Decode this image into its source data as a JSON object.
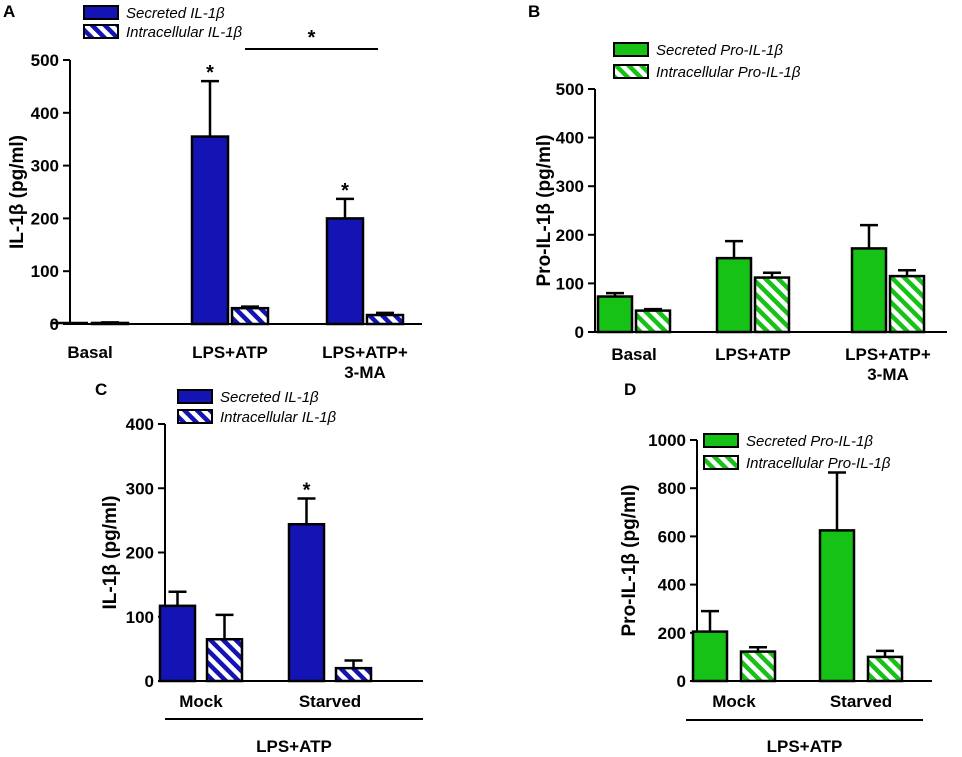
{
  "colors": {
    "blue": "#1414b4",
    "green": "#16c216"
  },
  "chart_data": [
    {
      "panel": "A",
      "type": "bar",
      "ylabel": "IL-1β (pg/ml)",
      "ylim": [
        0,
        500
      ],
      "yticks": [
        "0",
        "100",
        "200",
        "300",
        "400",
        "500"
      ],
      "categories": [
        [
          "Basal"
        ],
        [
          "LPS+ATP"
        ],
        [
          "LPS+ATP+",
          "3-MA"
        ]
      ],
      "series": [
        {
          "name": "Secreted IL-1β",
          "pattern": "solid",
          "color": "blue",
          "values": [
            0,
            355,
            200
          ],
          "errors": [
            0,
            105,
            37
          ]
        },
        {
          "name": "Intracellular IL-1β",
          "pattern": "hatched",
          "color": "blue",
          "values": [
            2,
            30,
            17
          ],
          "errors": [
            1,
            3,
            4
          ]
        }
      ],
      "annotations": [
        {
          "text": "*",
          "category": 1,
          "series": 0
        },
        {
          "text": "*",
          "category": 2,
          "series": 0
        },
        {
          "text": "*",
          "type": "bracket",
          "from_category": 1,
          "to_category": 2,
          "level": 520
        }
      ],
      "legend": "top-left"
    },
    {
      "panel": "B",
      "type": "bar",
      "ylabel": "Pro-IL-1β (pg/ml)",
      "ylim": [
        0,
        500
      ],
      "yticks": [
        "0",
        "100",
        "200",
        "300",
        "400",
        "500"
      ],
      "categories": [
        [
          "Basal"
        ],
        [
          "LPS+ATP"
        ],
        [
          "LPS+ATP+",
          "3-MA"
        ]
      ],
      "series": [
        {
          "name": "Secreted Pro-IL-1β",
          "pattern": "solid",
          "color": "green",
          "values": [
            73,
            152,
            172
          ],
          "errors": [
            7,
            35,
            48
          ]
        },
        {
          "name": "Intracellular Pro-IL-1β",
          "pattern": "hatched",
          "color": "green",
          "values": [
            44,
            112,
            115
          ],
          "errors": [
            3,
            10,
            12
          ]
        }
      ],
      "annotations": [],
      "legend": "top-left"
    },
    {
      "panel": "C",
      "type": "bar",
      "ylabel": "IL-1β (pg/ml)",
      "ylim": [
        0,
        400
      ],
      "yticks": [
        "0",
        "100",
        "200",
        "300",
        "400"
      ],
      "categories": [
        [
          "Mock"
        ],
        [
          "Starved"
        ]
      ],
      "group_label": "LPS+ATP",
      "series": [
        {
          "name": "Secreted IL-1β",
          "pattern": "solid",
          "color": "blue",
          "values": [
            117,
            244
          ],
          "errors": [
            22,
            40
          ]
        },
        {
          "name": "Intracellular IL-1β",
          "pattern": "hatched",
          "color": "blue",
          "values": [
            65,
            20
          ],
          "errors": [
            38,
            12
          ]
        }
      ],
      "annotations": [
        {
          "text": "*",
          "category": 1,
          "series": 0
        }
      ],
      "legend": "top-right"
    },
    {
      "panel": "D",
      "type": "bar",
      "ylabel": "Pro-IL-1β (pg/ml)",
      "ylim": [
        0,
        1000
      ],
      "yticks": [
        "0",
        "200",
        "400",
        "600",
        "800",
        "1000"
      ],
      "categories": [
        [
          "Mock"
        ],
        [
          "Starved"
        ]
      ],
      "group_label": "LPS+ATP",
      "series": [
        {
          "name": "Secreted Pro-IL-1β",
          "pattern": "solid",
          "color": "green",
          "values": [
            205,
            625
          ],
          "errors": [
            85,
            240
          ]
        },
        {
          "name": "Intracellular Pro-IL-1β",
          "pattern": "hatched",
          "color": "green",
          "values": [
            122,
            100
          ],
          "errors": [
            18,
            25
          ]
        }
      ],
      "annotations": [],
      "legend": "top-right"
    }
  ]
}
